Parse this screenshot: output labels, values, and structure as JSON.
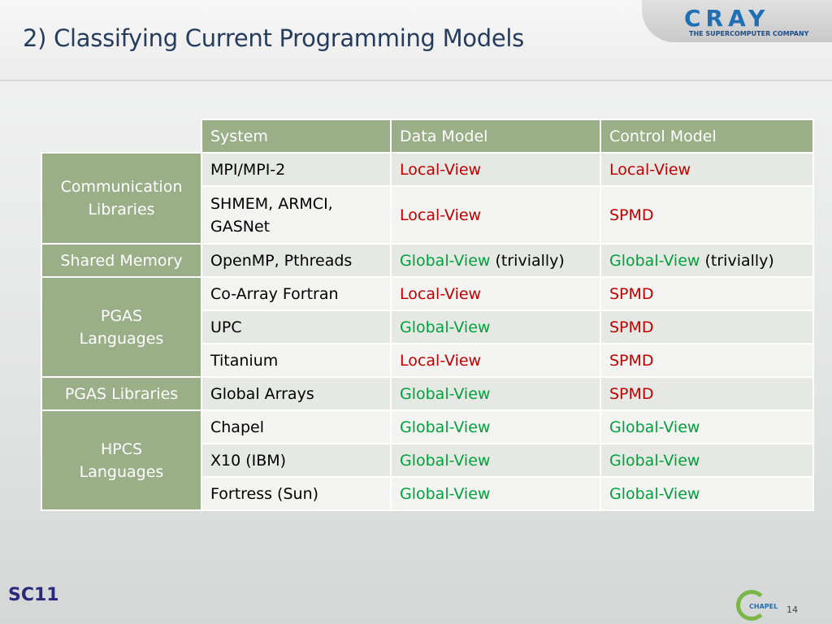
{
  "header": {
    "title": "2) Classifying Current Programming Models",
    "logo": "CRAY",
    "tagline": "THE SUPERCOMPUTER COMPANY"
  },
  "table": {
    "columns": [
      "System",
      "Data Model",
      "Control Model"
    ],
    "groups": [
      {
        "label": "Communication\nLibraries",
        "rows": [
          {
            "system": "MPI/MPI-2",
            "data": {
              "text": "Local-View",
              "color": "#c00000"
            },
            "control": {
              "text": "Local-View",
              "color": "#c00000"
            }
          },
          {
            "system": "SHMEM, ARMCI,\nGASNet",
            "data": {
              "text": "Local-View",
              "color": "#c00000"
            },
            "control": {
              "text": "SPMD",
              "color": "#c00000"
            }
          }
        ]
      },
      {
        "label": "Shared Memory",
        "rows": [
          {
            "system": "OpenMP, Pthreads",
            "data": {
              "text": "Global-View",
              "color": "#00a03c",
              "suffix": "(trivially)"
            },
            "control": {
              "text": "Global-View",
              "color": "#00a03c",
              "suffix": "(trivially)"
            }
          }
        ]
      },
      {
        "label": "PGAS\nLanguages",
        "rows": [
          {
            "system": "Co-Array Fortran",
            "data": {
              "text": "Local-View",
              "color": "#c00000"
            },
            "control": {
              "text": "SPMD",
              "color": "#c00000"
            }
          },
          {
            "system": "UPC",
            "data": {
              "text": "Global-View",
              "color": "#00a03c"
            },
            "control": {
              "text": "SPMD",
              "color": "#c00000"
            }
          },
          {
            "system": "Titanium",
            "data": {
              "text": "Local-View",
              "color": "#c00000"
            },
            "control": {
              "text": "SPMD",
              "color": "#c00000"
            }
          }
        ]
      },
      {
        "label": "PGAS Libraries",
        "rows": [
          {
            "system": "Global Arrays",
            "data": {
              "text": "Global-View",
              "color": "#00a03c"
            },
            "control": {
              "text": "SPMD",
              "color": "#c00000"
            }
          }
        ]
      },
      {
        "label": "HPCS\nLanguages",
        "rows": [
          {
            "system": "Chapel",
            "data": {
              "text": "Global-View",
              "color": "#00a03c"
            },
            "control": {
              "text": "Global-View",
              "color": "#00a03c"
            }
          },
          {
            "system": "X10 (IBM)",
            "data": {
              "text": "Global-View",
              "color": "#00a03c"
            },
            "control": {
              "text": "Global-View",
              "color": "#00a03c"
            }
          },
          {
            "system": "Fortress (Sun)",
            "data": {
              "text": "Global-View",
              "color": "#00a03c"
            },
            "control": {
              "text": "Global-View",
              "color": "#00a03c"
            }
          }
        ]
      }
    ]
  },
  "footer": {
    "left_logo": "SC11",
    "right_logo": "CHAPEL",
    "page": "14"
  }
}
